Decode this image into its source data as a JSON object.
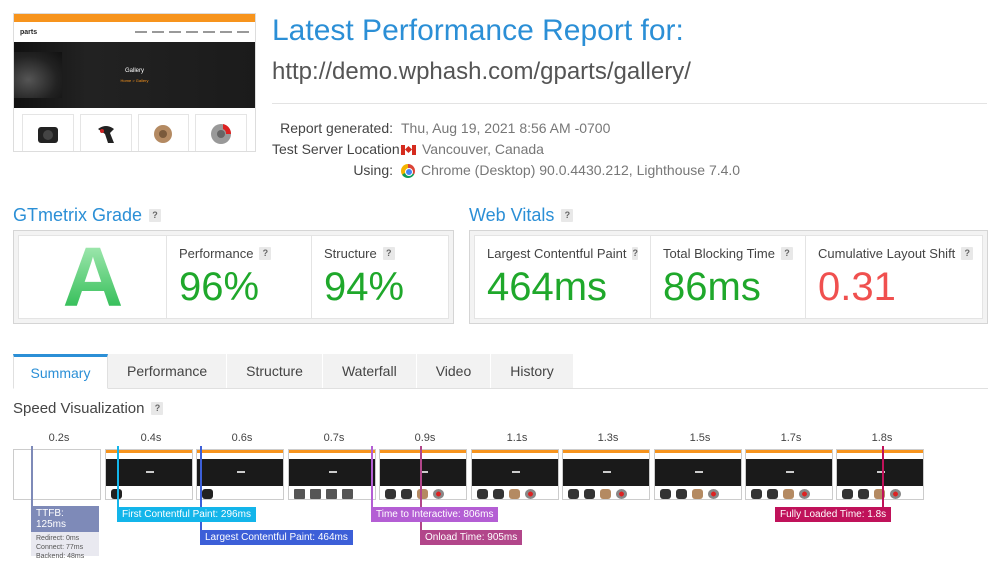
{
  "thumbnail": {
    "logo": "parts",
    "hero_title": "Gallery",
    "hero_sub": "Home > Gallery"
  },
  "header": {
    "title": "Latest Performance Report for:",
    "url": "http://demo.wphash.com/gparts/gallery/"
  },
  "meta": {
    "report_generated_label": "Report generated:",
    "report_generated_value": "Thu, Aug 19, 2021 8:56 AM -0700",
    "server_location_label": "Test Server Location:",
    "server_location_value": "Vancouver, Canada",
    "using_label": "Using:",
    "using_value": "Chrome (Desktop) 90.0.4430.212, Lighthouse 7.4.0"
  },
  "gtmetrix": {
    "heading": "GTmetrix Grade",
    "grade": "A",
    "performance_label": "Performance",
    "performance_value": "96%",
    "structure_label": "Structure",
    "structure_value": "94%"
  },
  "web_vitals": {
    "heading": "Web Vitals",
    "lcp_label": "Largest Contentful Paint",
    "lcp_value": "464ms",
    "tbt_label": "Total Blocking Time",
    "tbt_value": "86ms",
    "cls_label": "Cumulative Layout Shift",
    "cls_value": "0.31"
  },
  "colors": {
    "good": "#1fa82b",
    "bad": "#f0504f",
    "accent": "#2b8fd6"
  },
  "tabs": [
    "Summary",
    "Performance",
    "Structure",
    "Waterfall",
    "Video",
    "History"
  ],
  "speed": {
    "heading": "Speed Visualization",
    "times": [
      "0.2s",
      "0.4s",
      "0.6s",
      "0.7s",
      "0.9s",
      "1.1s",
      "1.3s",
      "1.5s",
      "1.7s",
      "1.8s"
    ],
    "ttfb_label": "TTFB: 125ms",
    "redirect": "Redirect: 0ms",
    "connect": "Connect: 77ms",
    "backend": "Backend: 48ms",
    "fcp_label": "First Contentful Paint: 296ms",
    "lcp_label": "Largest Contentful Paint: 464ms",
    "tti_label": "Time to Interactive: 806ms",
    "onload_label": "Onload Time: 905ms",
    "fully_loaded_label": "Fully Loaded Time: 1.8s"
  }
}
